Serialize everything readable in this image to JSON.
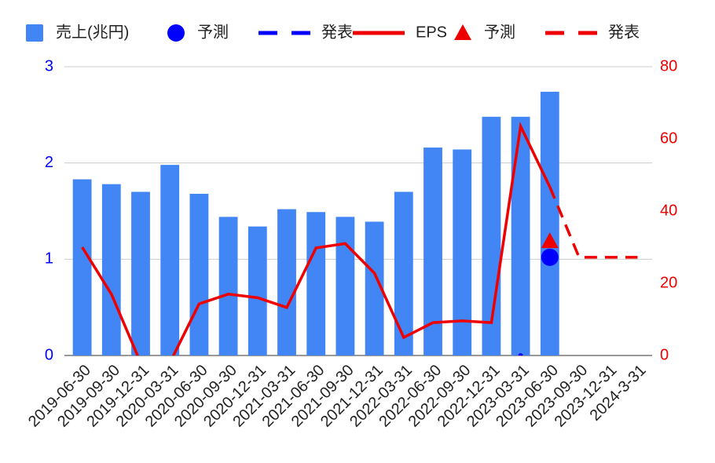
{
  "chart_data": {
    "type": "combo",
    "categories": [
      "2019-06-30",
      "2019-09-30",
      "2019-12-31",
      "2020-03-31",
      "2020-06-30",
      "2020-09-30",
      "2020-12-31",
      "2021-03-31",
      "2021-06-30",
      "2021-09-30",
      "2021-12-31",
      "2022-03-31",
      "2022-06-30",
      "2022-09-30",
      "2022-12-31",
      "2023-03-31",
      "2023-06-30",
      "2023-09-30",
      "2023-12-31",
      "2024-3-31"
    ],
    "series": [
      {
        "name": "売上(兆円)",
        "type": "bar",
        "color": "#4285f4",
        "axis": "y",
        "values": [
          1.83,
          1.78,
          1.7,
          1.98,
          1.68,
          1.44,
          1.34,
          1.52,
          1.49,
          1.44,
          1.39,
          1.7,
          2.16,
          2.14,
          2.48,
          2.48,
          2.74,
          null,
          null,
          null
        ]
      },
      {
        "name": "予測",
        "type": "scatter",
        "marker": "circle",
        "color": "#0000ff",
        "axis": "y",
        "values": [
          null,
          null,
          null,
          null,
          null,
          null,
          null,
          null,
          null,
          null,
          null,
          null,
          null,
          null,
          null,
          null,
          1.02,
          null,
          null,
          null
        ]
      },
      {
        "name": "発表",
        "type": "line",
        "dash": true,
        "color": "#0000ff",
        "axis": "y",
        "values": [
          null,
          null,
          null,
          null,
          null,
          null,
          null,
          null,
          null,
          null,
          null,
          null,
          null,
          null,
          null,
          0,
          null,
          null,
          null,
          null
        ]
      },
      {
        "name": "EPS",
        "type": "line",
        "dash": false,
        "color": "#ee0000",
        "axis": "y2",
        "values": [
          30.0,
          17.0,
          -2,
          -2,
          14.3,
          17.0,
          16.0,
          13.3,
          29.8,
          31.0,
          22.8,
          5.0,
          9.1,
          9.6,
          9.1,
          63.5,
          46.7,
          null,
          null,
          null
        ]
      },
      {
        "name": "予測",
        "type": "scatter",
        "marker": "triangle",
        "color": "#ee0000",
        "axis": "y2",
        "values": [
          null,
          null,
          null,
          null,
          null,
          null,
          null,
          null,
          null,
          null,
          null,
          null,
          null,
          null,
          null,
          null,
          31.7,
          null,
          null,
          null
        ]
      },
      {
        "name": "発表",
        "type": "line",
        "dash": true,
        "color": "#ee0000",
        "axis": "y2",
        "values": [
          null,
          null,
          null,
          null,
          null,
          null,
          null,
          null,
          null,
          null,
          null,
          null,
          null,
          null,
          null,
          null,
          46.7,
          27.2,
          27.2,
          27.2
        ]
      }
    ],
    "ylim": [
      0,
      3
    ],
    "yticks": [
      0,
      1,
      2,
      3
    ],
    "ytick_color": "#0000ff",
    "y2lim": [
      0,
      80
    ],
    "y2ticks": [
      0,
      20,
      40,
      60,
      80
    ],
    "y2tick_color": "#ee0000",
    "grid": true,
    "legend": "top"
  }
}
